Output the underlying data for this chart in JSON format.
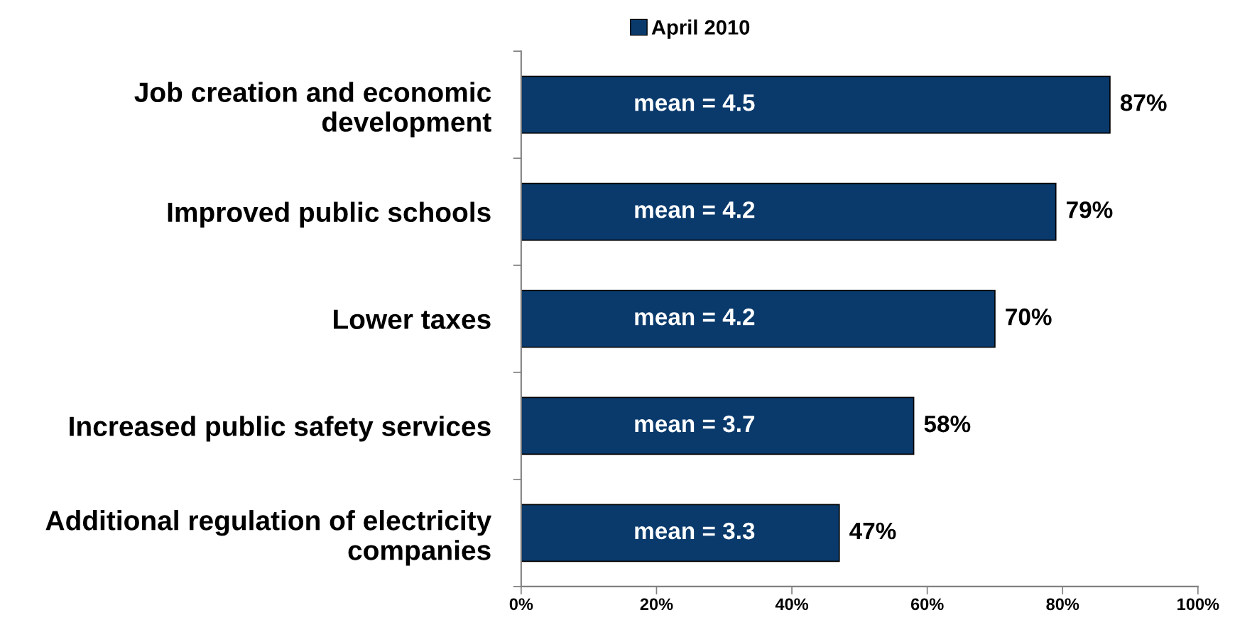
{
  "chart_data": {
    "type": "bar",
    "orientation": "horizontal",
    "categories": [
      "Job creation and economic\ndevelopment",
      "Improved public schools",
      "Lower taxes",
      "Increased public safety services",
      "Additional regulation of electricity\ncompanies"
    ],
    "series": [
      {
        "name": "April 2010",
        "color": "#0a3a6c",
        "values": [
          87,
          79,
          70,
          58,
          47
        ],
        "value_labels": [
          "87%",
          "79%",
          "70%",
          "58%",
          "47%"
        ]
      }
    ],
    "xlim": [
      0,
      100
    ],
    "xticks": [
      {
        "value": 0,
        "label": "0%"
      },
      {
        "value": 20,
        "label": "20%"
      },
      {
        "value": 40,
        "label": "40%"
      },
      {
        "value": 60,
        "label": "60%"
      },
      {
        "value": 80,
        "label": "80%"
      },
      {
        "value": 100,
        "label": "100%"
      }
    ],
    "annotations": [
      "mean = 4.5",
      "mean = 4.2",
      "mean = 4.2",
      "mean = 3.7",
      "mean = 3.3"
    ],
    "grid": false,
    "legend": "top"
  }
}
